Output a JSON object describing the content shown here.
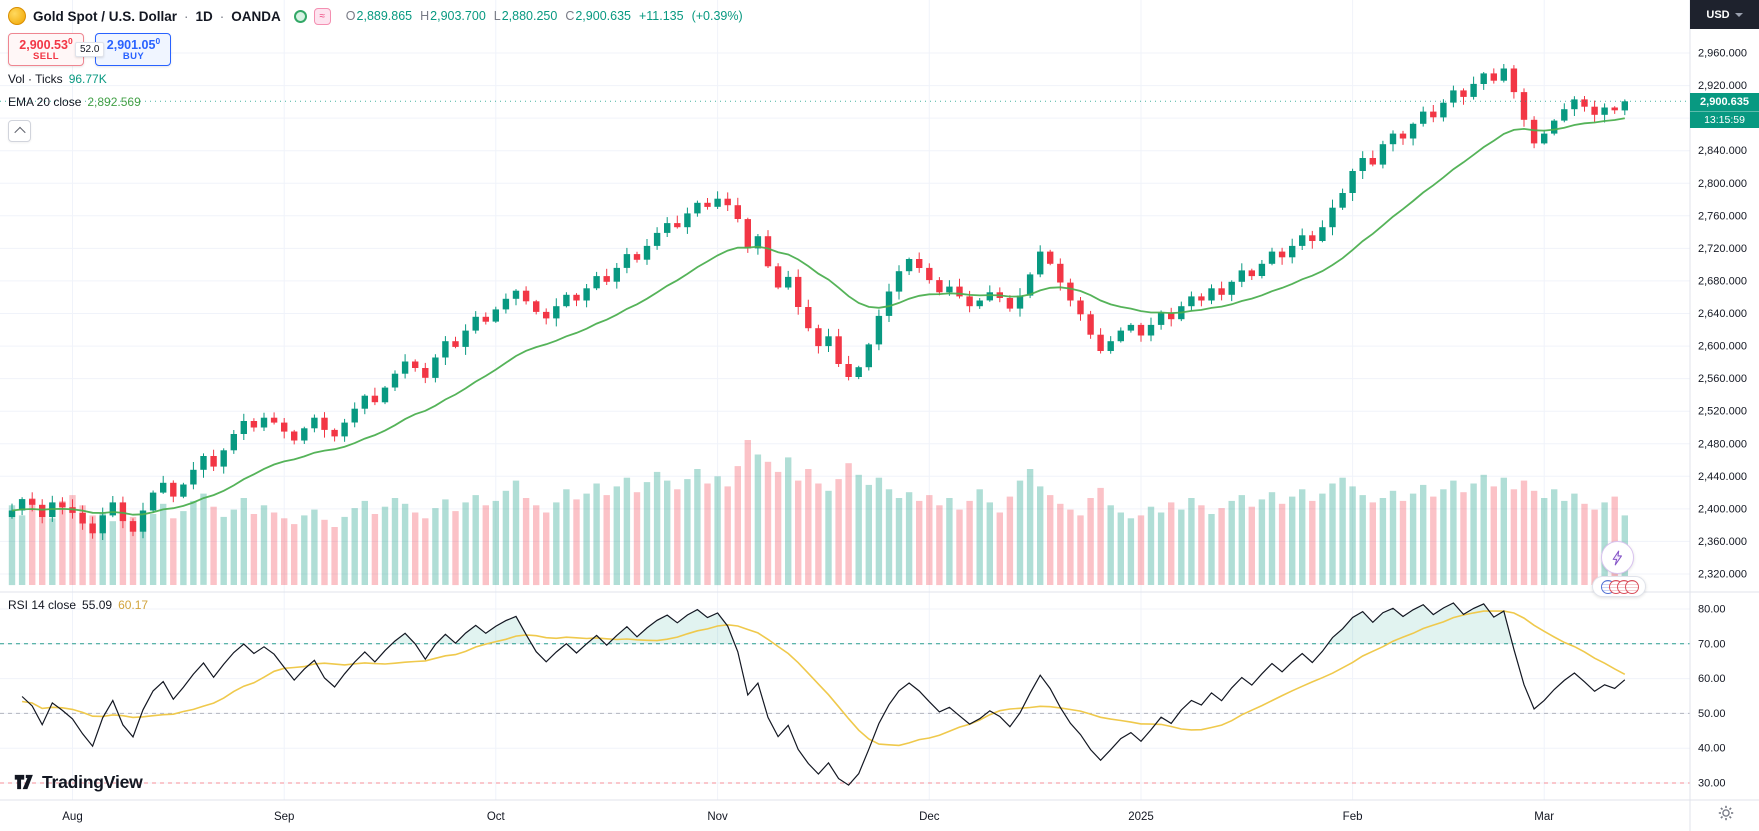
{
  "header": {
    "symbol": "Gold Spot / U.S. Dollar",
    "sep": "·",
    "timeframe": "1D",
    "exchange": "OANDA",
    "ohlc": {
      "open_label": "O",
      "open": "2,889.865",
      "high_label": "H",
      "high": "2,903.700",
      "low_label": "L",
      "low": "2,880.250",
      "close_label": "C",
      "close": "2,900.635",
      "change": "+11.135",
      "change_pct": "(+0.39%)"
    }
  },
  "order_panel": {
    "sell_price": "2,900.53",
    "sell_sup": "0",
    "sell_label": "SELL",
    "spread": "52.0",
    "buy_price": "2,901.05",
    "buy_sup": "0",
    "buy_label": "BUY"
  },
  "indicators": {
    "volume": {
      "label": "Vol · Ticks",
      "value": "96.77K"
    },
    "ema": {
      "label": "EMA 20 close",
      "value": "2,892.569"
    },
    "rsi": {
      "label": "RSI 14 close",
      "value": "55.09",
      "ma_value": "60.17"
    }
  },
  "price_label": {
    "price": "2,900.635",
    "countdown": "13:15:59"
  },
  "axis": {
    "currency": "USD",
    "price_ticks": [
      "2,960.000",
      "2,920.000",
      "2,880.000",
      "2,840.000",
      "2,800.000",
      "2,760.000",
      "2,720.000",
      "2,680.000",
      "2,640.000",
      "2,600.000",
      "2,560.000",
      "2,520.000",
      "2,480.000",
      "2,440.000",
      "2,400.000",
      "2,360.000",
      "2,320.000"
    ],
    "rsi_ticks": [
      "80.00",
      "70.00",
      "60.00",
      "50.00",
      "40.00",
      "30.00"
    ]
  },
  "brand": {
    "name": "TradingView"
  },
  "chart_data": {
    "type": "candlestick+volume+rsi",
    "title": "Gold Spot / U.S. Dollar 1D OANDA",
    "last_close": 2900.635,
    "ema_period": 20,
    "rsi_period": 14,
    "price_axis": {
      "min": 2320,
      "max": 2960,
      "step": 40
    },
    "rsi_axis": {
      "min": 30,
      "max": 80,
      "step": 10,
      "bands": {
        "upper": 70,
        "middle": 50,
        "lower": 30
      }
    },
    "time_ticks": [
      {
        "label": "Aug",
        "index": 6
      },
      {
        "label": "Sep",
        "index": 27
      },
      {
        "label": "Oct",
        "index": 48
      },
      {
        "label": "Nov",
        "index": 70
      },
      {
        "label": "Dec",
        "index": 91
      },
      {
        "label": "2025",
        "index": 112
      },
      {
        "label": "Feb",
        "index": 133
      },
      {
        "label": "Mar",
        "index": 152
      }
    ],
    "closes": [
      2398,
      2412,
      2405,
      2390,
      2408,
      2402,
      2395,
      2382,
      2370,
      2392,
      2408,
      2385,
      2372,
      2398,
      2420,
      2432,
      2415,
      2430,
      2448,
      2465,
      2452,
      2472,
      2492,
      2508,
      2500,
      2512,
      2506,
      2495,
      2484,
      2499,
      2512,
      2497,
      2489,
      2506,
      2523,
      2539,
      2531,
      2549,
      2566,
      2581,
      2573,
      2561,
      2586,
      2606,
      2599,
      2619,
      2636,
      2630,
      2645,
      2658,
      2668,
      2655,
      2642,
      2634,
      2649,
      2663,
      2656,
      2671,
      2686,
      2679,
      2696,
      2713,
      2706,
      2723,
      2739,
      2751,
      2746,
      2763,
      2776,
      2771,
      2781,
      2773,
      2756,
      2720,
      2735,
      2698,
      2672,
      2685,
      2648,
      2622,
      2600,
      2612,
      2578,
      2562,
      2574,
      2602,
      2637,
      2667,
      2692,
      2707,
      2696,
      2681,
      2666,
      2673,
      2661,
      2649,
      2656,
      2666,
      2659,
      2646,
      2662,
      2688,
      2716,
      2701,
      2678,
      2656,
      2639,
      2614,
      2594,
      2606,
      2619,
      2626,
      2613,
      2626,
      2641,
      2633,
      2649,
      2661,
      2656,
      2671,
      2663,
      2679,
      2693,
      2686,
      2701,
      2716,
      2709,
      2723,
      2736,
      2729,
      2746,
      2770,
      2788,
      2815,
      2831,
      2823,
      2848,
      2861,
      2855,
      2873,
      2888,
      2881,
      2899,
      2914,
      2906,
      2922,
      2935,
      2926,
      2941,
      2912,
      2878,
      2849,
      2861,
      2877,
      2891,
      2903,
      2894,
      2884,
      2893,
      2889.5,
      2900.635
    ],
    "volumes": [
      55,
      48,
      60,
      52,
      46,
      58,
      62,
      55,
      48,
      50,
      44,
      52,
      47,
      43,
      49,
      56,
      46,
      51,
      58,
      63,
      54,
      47,
      52,
      60,
      49,
      55,
      50,
      46,
      42,
      48,
      52,
      45,
      40,
      47,
      53,
      58,
      49,
      54,
      60,
      56,
      50,
      46,
      53,
      59,
      51,
      57,
      62,
      55,
      58,
      65,
      72,
      60,
      55,
      50,
      57,
      66,
      59,
      63,
      70,
      62,
      68,
      74,
      64,
      71,
      78,
      72,
      66,
      73,
      80,
      70,
      75,
      68,
      82,
      100,
      90,
      85,
      78,
      88,
      72,
      80,
      70,
      65,
      73,
      84,
      76,
      69,
      74,
      66,
      60,
      64,
      58,
      62,
      55,
      60,
      52,
      58,
      66,
      57,
      50,
      61,
      72,
      80,
      68,
      62,
      56,
      52,
      48,
      60,
      67,
      55,
      50,
      46,
      48,
      54,
      50,
      57,
      52,
      60,
      55,
      49,
      53,
      58,
      62,
      54,
      59,
      64,
      56,
      61,
      66,
      58,
      63,
      70,
      74,
      68,
      62,
      57,
      60,
      65,
      58,
      63,
      69,
      61,
      66,
      72,
      64,
      70,
      76,
      68,
      74,
      66,
      72,
      65,
      60,
      66,
      58,
      63,
      56,
      52,
      57,
      61,
      48
    ],
    "colors": {
      "up": "#089981",
      "down": "#f23645",
      "vol_up": "rgba(8,153,129,0.32)",
      "vol_down": "rgba(242,54,69,0.30)",
      "ema": "#4caf50",
      "rsi": "#131722",
      "rsi_ma": "#efc94c",
      "band_upper": "#2a9d8f",
      "band_middle": "#b2b5be",
      "band_lower": "#f58f98",
      "overbought_fill": "rgba(8,153,129,0.12)"
    }
  }
}
